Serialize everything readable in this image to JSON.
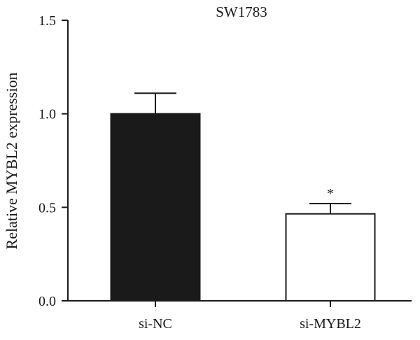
{
  "chart_data": {
    "type": "bar",
    "title": "SW1783",
    "ylabel": "Relative MYBL2 expression",
    "xlabel": "",
    "categories": [
      "si-NC",
      "si-MYBL2"
    ],
    "values": [
      1.0,
      0.465
    ],
    "error_bars": [
      0.11,
      0.055
    ],
    "bar_fills": [
      "#1a1a1a",
      "#ffffff"
    ],
    "annotations": [
      "",
      "*"
    ],
    "ylim": [
      0,
      1.5
    ],
    "yticks": [
      0.0,
      0.5,
      1.0,
      1.5
    ],
    "ytick_labels": [
      "0.0",
      "0.5",
      "1.0",
      "1.5"
    ],
    "grid": false,
    "legend": "none"
  }
}
